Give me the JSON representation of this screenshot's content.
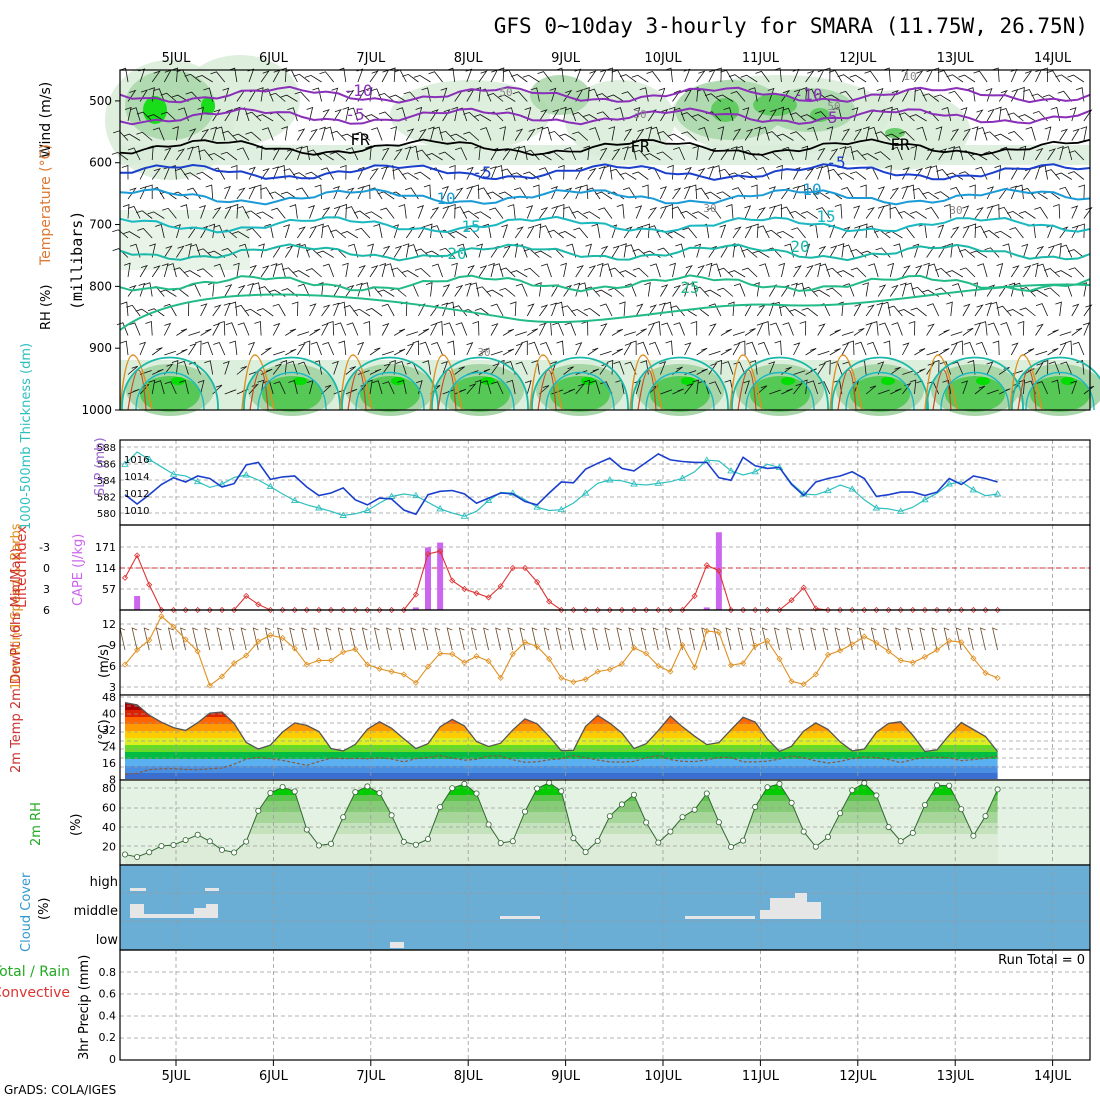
{
  "title": "GFS 0~10day 3-hourly for SMARA (11.75W, 26.75N)",
  "footer": "GrADS: COLA/IGES",
  "date_labels": [
    "5JUL",
    "6JUL",
    "7JUL",
    "8JUL",
    "9JUL",
    "10JUL",
    "11JUL",
    "12JUL",
    "13JUL",
    "14JUL"
  ],
  "colors": {
    "frame": "#000000",
    "grid": "#9a9a9a",
    "rh_light": "#d8ecd8",
    "rh_mid": "#a8d6a8",
    "rh_dark": "#55c855",
    "rh_core": "#00dd00",
    "thick": "#2fbfbf",
    "slp": "#1a3fcc",
    "lifted": "#dd3333",
    "cape": "#cc66ee",
    "wind": "#e09020",
    "barb": "#6b4a2a",
    "cloud": "#6aaed6",
    "cloud_patch": "#e6e6e6"
  },
  "upper_panel": {
    "ylabel": "(millibars)",
    "label_wind": "Wind (m/s)",
    "label_temp": "Temperature (°C)",
    "label_rh": "RH (%)",
    "pressure_ticks": [
      "500",
      "600",
      "700",
      "800",
      "900",
      "1000"
    ]
  },
  "contour_labels": [
    "-10",
    "-5",
    "FR",
    "-5",
    "10",
    "15",
    "20",
    "25",
    "-10",
    "-5",
    "FR",
    "FR",
    "-5",
    "10",
    "15",
    "20",
    "50",
    "50",
    "30",
    "10",
    "30",
    "30",
    "30"
  ],
  "chart_data": [
    {
      "type": "contour",
      "title": "Temperature / RH / Wind",
      "ylabel": "millibars",
      "ylim": [
        1000,
        450
      ],
      "isotherms": [
        {
          "label": "-10",
          "pressure": 490,
          "color": "#8a2fb8"
        },
        {
          "label": "-5",
          "pressure": 525,
          "color": "#8a2fb8"
        },
        {
          "label": "FR",
          "pressure": 575,
          "color": "#000000"
        },
        {
          "label": "5",
          "pressure": 615,
          "color": "#1a3fcc"
        },
        {
          "label": "10",
          "pressure": 655,
          "color": "#1a9ad6"
        },
        {
          "label": "15",
          "pressure": 700,
          "color": "#1ab8c0"
        },
        {
          "label": "20",
          "pressure": 745,
          "color": "#1ab8a8"
        },
        {
          "label": "25",
          "pressure": 795,
          "color": "#22bb88"
        }
      ]
    },
    {
      "type": "line",
      "title": "Thickness / SLP",
      "left_label": "1000-500mb Thickness (dm)",
      "right_label": "SLP (mb)",
      "thick_ticks": [
        "588",
        "586",
        "584",
        "582",
        "580"
      ],
      "slp_ticks": [
        "1016",
        "1014",
        "1012",
        "1010"
      ],
      "thickness": [
        585.9,
        587.4,
        586.5,
        585.6,
        584.7,
        584.5,
        583.8,
        583.1,
        583.5,
        584.3,
        584.6,
        584.0,
        583.2,
        582.3,
        581.5,
        581.0,
        580.6,
        580.2,
        579.7,
        579.9,
        580.3,
        581.2,
        582.0,
        582.3,
        582.1,
        581.3,
        580.5,
        580.0,
        579.6,
        580.2,
        581.5,
        582.5,
        582.4,
        581.6,
        580.7,
        580.3,
        580.4,
        581.2,
        582.4,
        583.6,
        584.0,
        583.9,
        583.5,
        583.4,
        583.6,
        583.8,
        584.2,
        585.0,
        586.4,
        586.3,
        585.1,
        584.6,
        585.0,
        585.9,
        585.5,
        583.6,
        582.3,
        582.2,
        582.7,
        583.4,
        582.9,
        581.6,
        580.6,
        580.5,
        580.2,
        580.7,
        581.6,
        582.4,
        583.5,
        583.8,
        582.8,
        582.1,
        582.3
      ],
      "slp": [
        1011.8,
        1010.7,
        1011.8,
        1013.0,
        1013.8,
        1013.3,
        1014.0,
        1013.7,
        1012.7,
        1013.1,
        1015.3,
        1015.6,
        1013.6,
        1013.9,
        1014.0,
        1012.7,
        1011.7,
        1012.0,
        1012.6,
        1011.2,
        1010.6,
        1011.4,
        1011.3,
        1010.0,
        1009.5,
        1011.8,
        1012.2,
        1012.3,
        1011.9,
        1010.8,
        1011.4,
        1012.0,
        1011.9,
        1011.0,
        1010.6,
        1012.0,
        1013.3,
        1013.2,
        1014.8,
        1015.5,
        1016.1,
        1014.9,
        1014.6,
        1015.6,
        1016.6,
        1015.9,
        1015.7,
        1015.6,
        1015.6,
        1013.8,
        1013.5,
        1016.2,
        1015.2,
        1014.9,
        1015.0,
        1013.0,
        1011.7,
        1013.3,
        1013.7,
        1014.0,
        1014.5,
        1013.7,
        1011.6,
        1011.8,
        1012.1,
        1012.1,
        1011.7,
        1012.1,
        1013.7,
        1013.0,
        1014.0,
        1013.7,
        1013.3
      ]
    },
    {
      "type": "bar",
      "title": "Lifted Index / CAPE",
      "left_label": "Lifted Index",
      "right_label": "CAPE (J/kg)",
      "li_ticks": [
        "-3",
        "0",
        "3",
        "6"
      ],
      "cape_ticks": [
        "171",
        "114",
        "57"
      ],
      "lifted_index": [
        0.7,
        -0.9,
        1.2,
        3.5,
        5.3,
        6.6,
        6.8,
        6.8,
        5.6,
        3.2,
        2.0,
        2.6,
        4.0,
        5.7,
        6.5,
        6.5,
        6.5,
        5.1,
        4.0,
        4.2,
        4.2,
        3.9,
        4.0,
        4.3,
        1.9,
        -1.0,
        -1.2,
        0.9,
        1.5,
        1.8,
        2.1,
        1.3,
        0.0,
        0.0,
        1.0,
        2.4,
        4.2,
        5.1,
        4.7,
        3.6,
        4.7,
        4.7,
        6.1,
        6.7,
        6.6,
        6.6,
        4.2,
        2.0,
        -0.2,
        0.2,
        4.5,
        4.8,
        3.8,
        3.9,
        3.9,
        2.3,
        1.4,
        2.9,
        4.3,
        4.4,
        5.0,
        5.1,
        4.8,
        4.3,
        4.3,
        5.3,
        6.3,
        5.9,
        5.0,
        4.5,
        4.5,
        5.1,
        5.6
      ],
      "cape": [
        {
          "step": 1,
          "value": 38
        },
        {
          "step": 24,
          "value": 7
        },
        {
          "step": 25,
          "value": 170
        },
        {
          "step": 26,
          "value": 183
        },
        {
          "step": 48,
          "value": 7
        },
        {
          "step": 49,
          "value": 211
        }
      ]
    },
    {
      "type": "line",
      "title": "10m Wind Speed & Barbs",
      "left_label": "10m Wind Speed & Barbs",
      "ylabel": "(m/s)",
      "yticks": [
        "12",
        "9",
        "6",
        "3"
      ],
      "speed": [
        6.2,
        8.3,
        9.7,
        13.1,
        11.6,
        9.8,
        8.1,
        3.2,
        4.5,
        6.4,
        7.5,
        9.5,
        10.4,
        10.0,
        8.5,
        6.2,
        6.8,
        6.8,
        8.0,
        8.4,
        6.2,
        5.6,
        5.2,
        4.8,
        3.6,
        5.9,
        7.8,
        7.7,
        6.5,
        7.4,
        6.7,
        4.3,
        7.7,
        9.4,
        8.8,
        7.0,
        4.3,
        3.7,
        4.1,
        5.2,
        5.5,
        6.3,
        8.6,
        7.8,
        6.0,
        5.2,
        9.0,
        5.8,
        11.0,
        10.8,
        6.1,
        6.4,
        8.9,
        9.6,
        7.0,
        3.8,
        3.4,
        4.8,
        7.6,
        8.2,
        9.1,
        10.2,
        9.3,
        8.1,
        6.8,
        6.5,
        7.3,
        8.3,
        9.6,
        9.4,
        7.1,
        5.0,
        4.3
      ]
    },
    {
      "type": "area",
      "title": "2m Temp / 2m DewPt",
      "left_label": "2m Temp 2m DewPt (6hr Min/Max)",
      "ylabel": "(°C)",
      "yticks": [
        "48",
        "40",
        "32",
        "24",
        "16",
        "8"
      ],
      "temp": [
        44.8,
        43.5,
        37.6,
        33.6,
        30.5,
        28.9,
        33.3,
        38.8,
        39.4,
        33.0,
        22.0,
        18.3,
        20.5,
        28.0,
        33.2,
        31.8,
        28.3,
        18.6,
        17.2,
        20.9,
        29.6,
        33.9,
        30.1,
        24.1,
        18.6,
        21.3,
        31.0,
        35.2,
        31.5,
        22.5,
        19.7,
        21.6,
        29.2,
        35.5,
        32.7,
        25.5,
        17.3,
        17.5,
        31.2,
        37.5,
        33.1,
        27.4,
        18.6,
        21.3,
        28.8,
        37.1,
        31.0,
        25.6,
        20.8,
        21.9,
        29.3,
        36.4,
        33.7,
        24.0,
        17.0,
        19.9,
        28.5,
        33.2,
        29.5,
        22.4,
        17.2,
        18.3,
        27.9,
        32.9,
        33.9,
        26.1,
        16.9,
        17.8,
        26.2,
        33.4,
        29.4,
        25.4,
        16.8
      ],
      "dewpoint": [
        3.8,
        4.4,
        6.5,
        6.9,
        7.1,
        6.6,
        6.5,
        7.0,
        7.4,
        9.6,
        12.5,
        13.6,
        12.8,
        11.8,
        10.4,
        8.9,
        11.2,
        13.1,
        12.8,
        12.9,
        12.7,
        13.3,
        12.6,
        10.9,
        12.8,
        13.4,
        14.6,
        13.1,
        11.9,
        12.4,
        14.4,
        14.3,
        12.1,
        10.7,
        11.0,
        12.1,
        12.7,
        14.6,
        13.3,
        12.0,
        10.9,
        10.8,
        11.2,
        13.3,
        14.6,
        12.2,
        11.2,
        11.1,
        12.0,
        13.6,
        13.4,
        10.9,
        10.9,
        11.3,
        12.5,
        14.3,
        13.2,
        11.5,
        10.2,
        11.2,
        12.8,
        13.7,
        13.5,
        12.2,
        10.5,
        12.2,
        13.6,
        13.6,
        13.3,
        11.6,
        12.2,
        13.0,
        14.3
      ]
    },
    {
      "type": "area",
      "title": "2m RH",
      "left_label": "2m RH",
      "ylabel": "(%)",
      "yticks": [
        "80",
        "60",
        "40",
        "20"
      ],
      "rh": [
        11.2,
        8.6,
        13.6,
        20.0,
        21.0,
        26.1,
        31.6,
        24.9,
        16.0,
        13.3,
        24.6,
        56.4,
        74.8,
        81.0,
        76.4,
        37.0,
        20.5,
        22.3,
        49.8,
        75.8,
        81.7,
        74.7,
        51.8,
        24.3,
        21.3,
        27.1,
        60.2,
        79.8,
        84.2,
        74.3,
        42.2,
        23.1,
        25.0,
        55.6,
        79.5,
        85.5,
        76.7,
        28.1,
        13.7,
        25.2,
        50.8,
        63.0,
        73.0,
        44.3,
        23.5,
        34.9,
        49.9,
        57.6,
        74.3,
        44.6,
        19.0,
        25.6,
        60.4,
        80.8,
        84.3,
        64.7,
        34.9,
        19.3,
        29.3,
        53.9,
        77.7,
        85.2,
        72.3,
        39.5,
        25.0,
        33.6,
        62.4,
        82.8,
        82.4,
        58.1,
        30.6,
        50.9,
        78.6
      ]
    },
    {
      "type": "heatmap",
      "title": "Cloud Cover",
      "left_label": "Cloud Cover",
      "ylabel": "(%)",
      "levels": [
        "high",
        "middle",
        "low"
      ]
    },
    {
      "type": "bar",
      "title": "Total / Rain Convective",
      "left_label": "Total / Rain",
      "left_label2": "Convective",
      "ylabel": "3hr Precip (mm)",
      "yticks": [
        "0.8",
        "0.6",
        "0.4",
        "0.2",
        "0"
      ],
      "run_total": "Run Total = 0",
      "values": []
    }
  ]
}
